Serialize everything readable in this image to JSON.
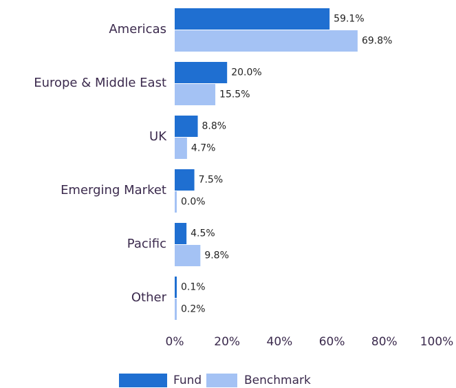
{
  "chart_data": {
    "type": "bar",
    "orientation": "horizontal",
    "categories": [
      "Americas",
      "Europe & Middle East",
      "UK",
      "Emerging Market",
      "Pacific",
      "Other"
    ],
    "series": [
      {
        "name": "Fund",
        "color": "#1f6fd1",
        "values": [
          59.1,
          20.0,
          8.8,
          7.5,
          4.5,
          0.1
        ],
        "value_labels": [
          "59.1%",
          "20.0%",
          "8.8%",
          "7.5%",
          "4.5%",
          "0.1%"
        ]
      },
      {
        "name": "Benchmark",
        "color": "#a4c2f4",
        "values": [
          69.8,
          15.5,
          4.7,
          0.0,
          9.8,
          0.2
        ],
        "value_labels": [
          "69.8%",
          "15.5%",
          "4.7%",
          "0.0%",
          "9.8%",
          "0.2%"
        ]
      }
    ],
    "xlim": [
      0,
      100
    ],
    "xticks": [
      {
        "value": 0,
        "label": "0%"
      },
      {
        "value": 20,
        "label": "20%"
      },
      {
        "value": 40,
        "label": "40%"
      },
      {
        "value": 60,
        "label": "60%"
      },
      {
        "value": 80,
        "label": "80%"
      },
      {
        "value": 100,
        "label": "100%"
      }
    ],
    "legend": "bottom"
  }
}
